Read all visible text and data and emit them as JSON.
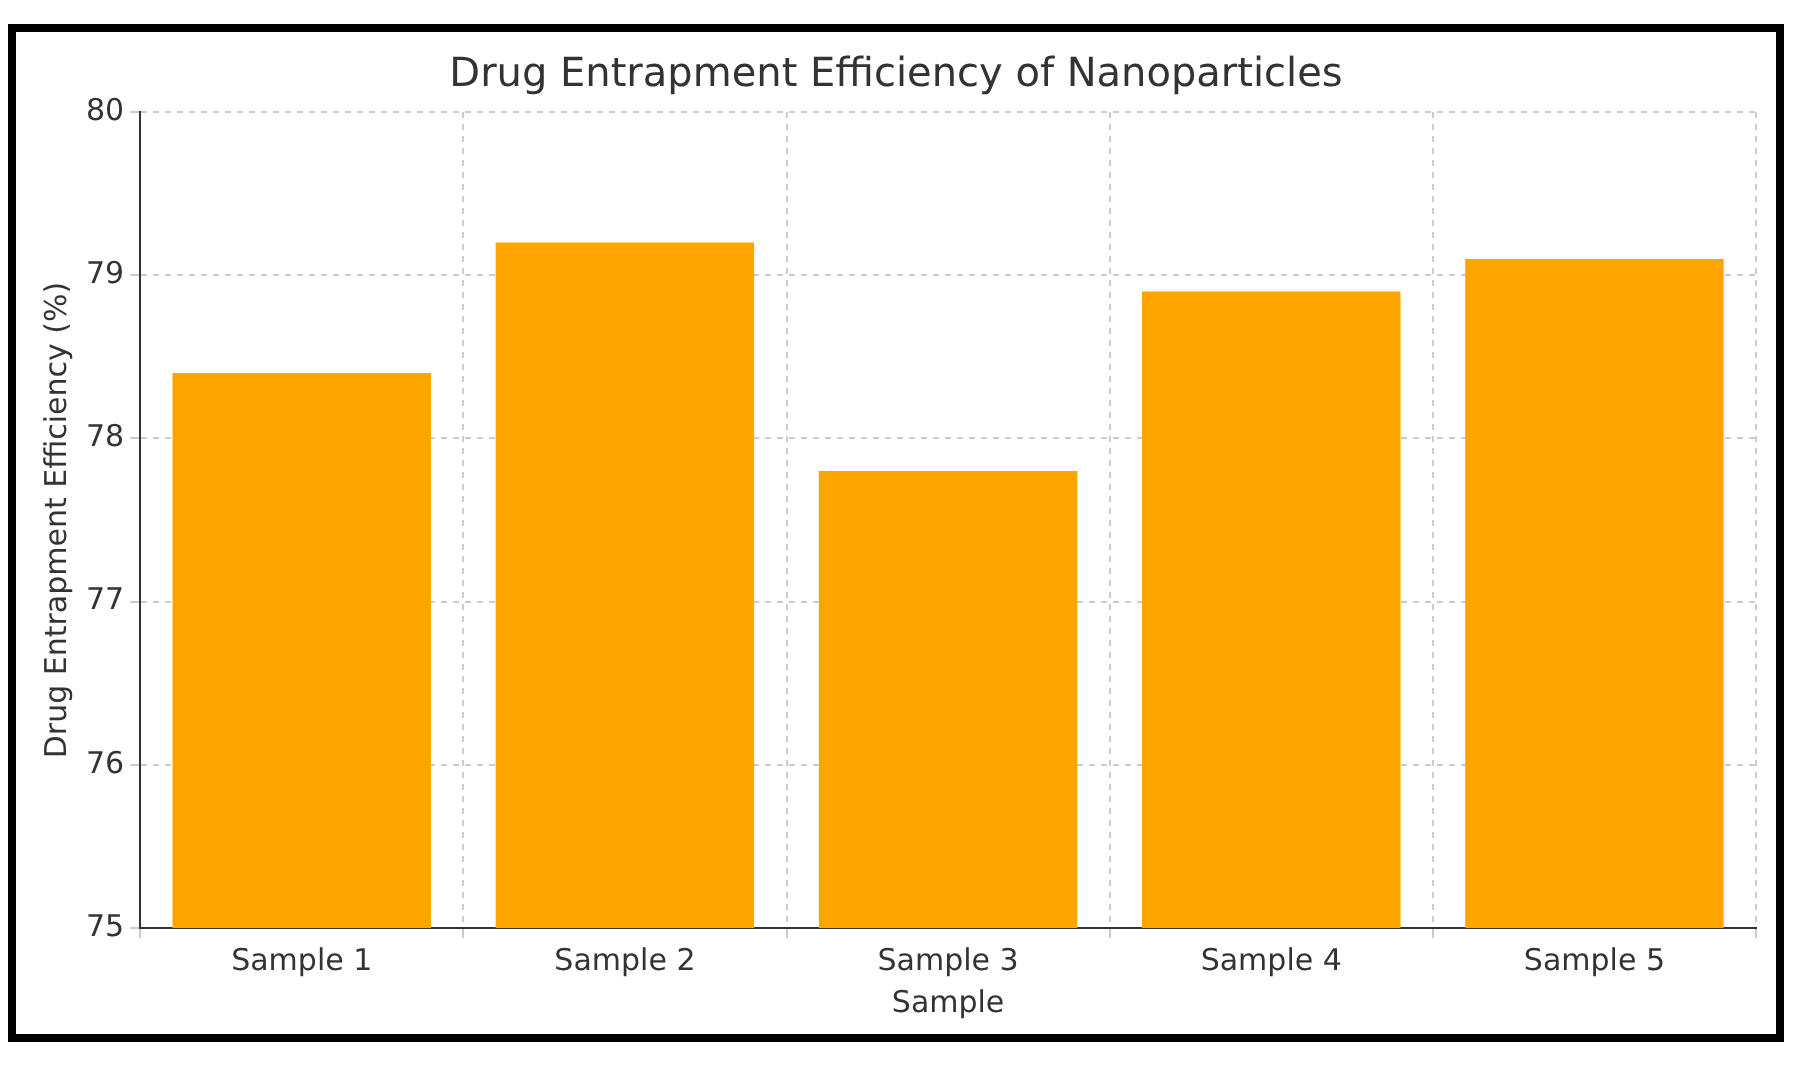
{
  "chart_data": {
    "type": "bar",
    "title": "Drug Entrapment Efficiency of Nanoparticles",
    "xlabel": "Sample",
    "ylabel": "Drug Entrapment Efficiency (%)",
    "categories": [
      "Sample 1",
      "Sample 2",
      "Sample 3",
      "Sample 4",
      "Sample 5"
    ],
    "values": [
      78.4,
      79.2,
      77.8,
      78.9,
      79.1
    ],
    "color": "#ffa500",
    "ylim": [
      75,
      80
    ],
    "yticks": [
      75,
      76,
      77,
      78,
      79,
      80
    ],
    "grid": true
  }
}
